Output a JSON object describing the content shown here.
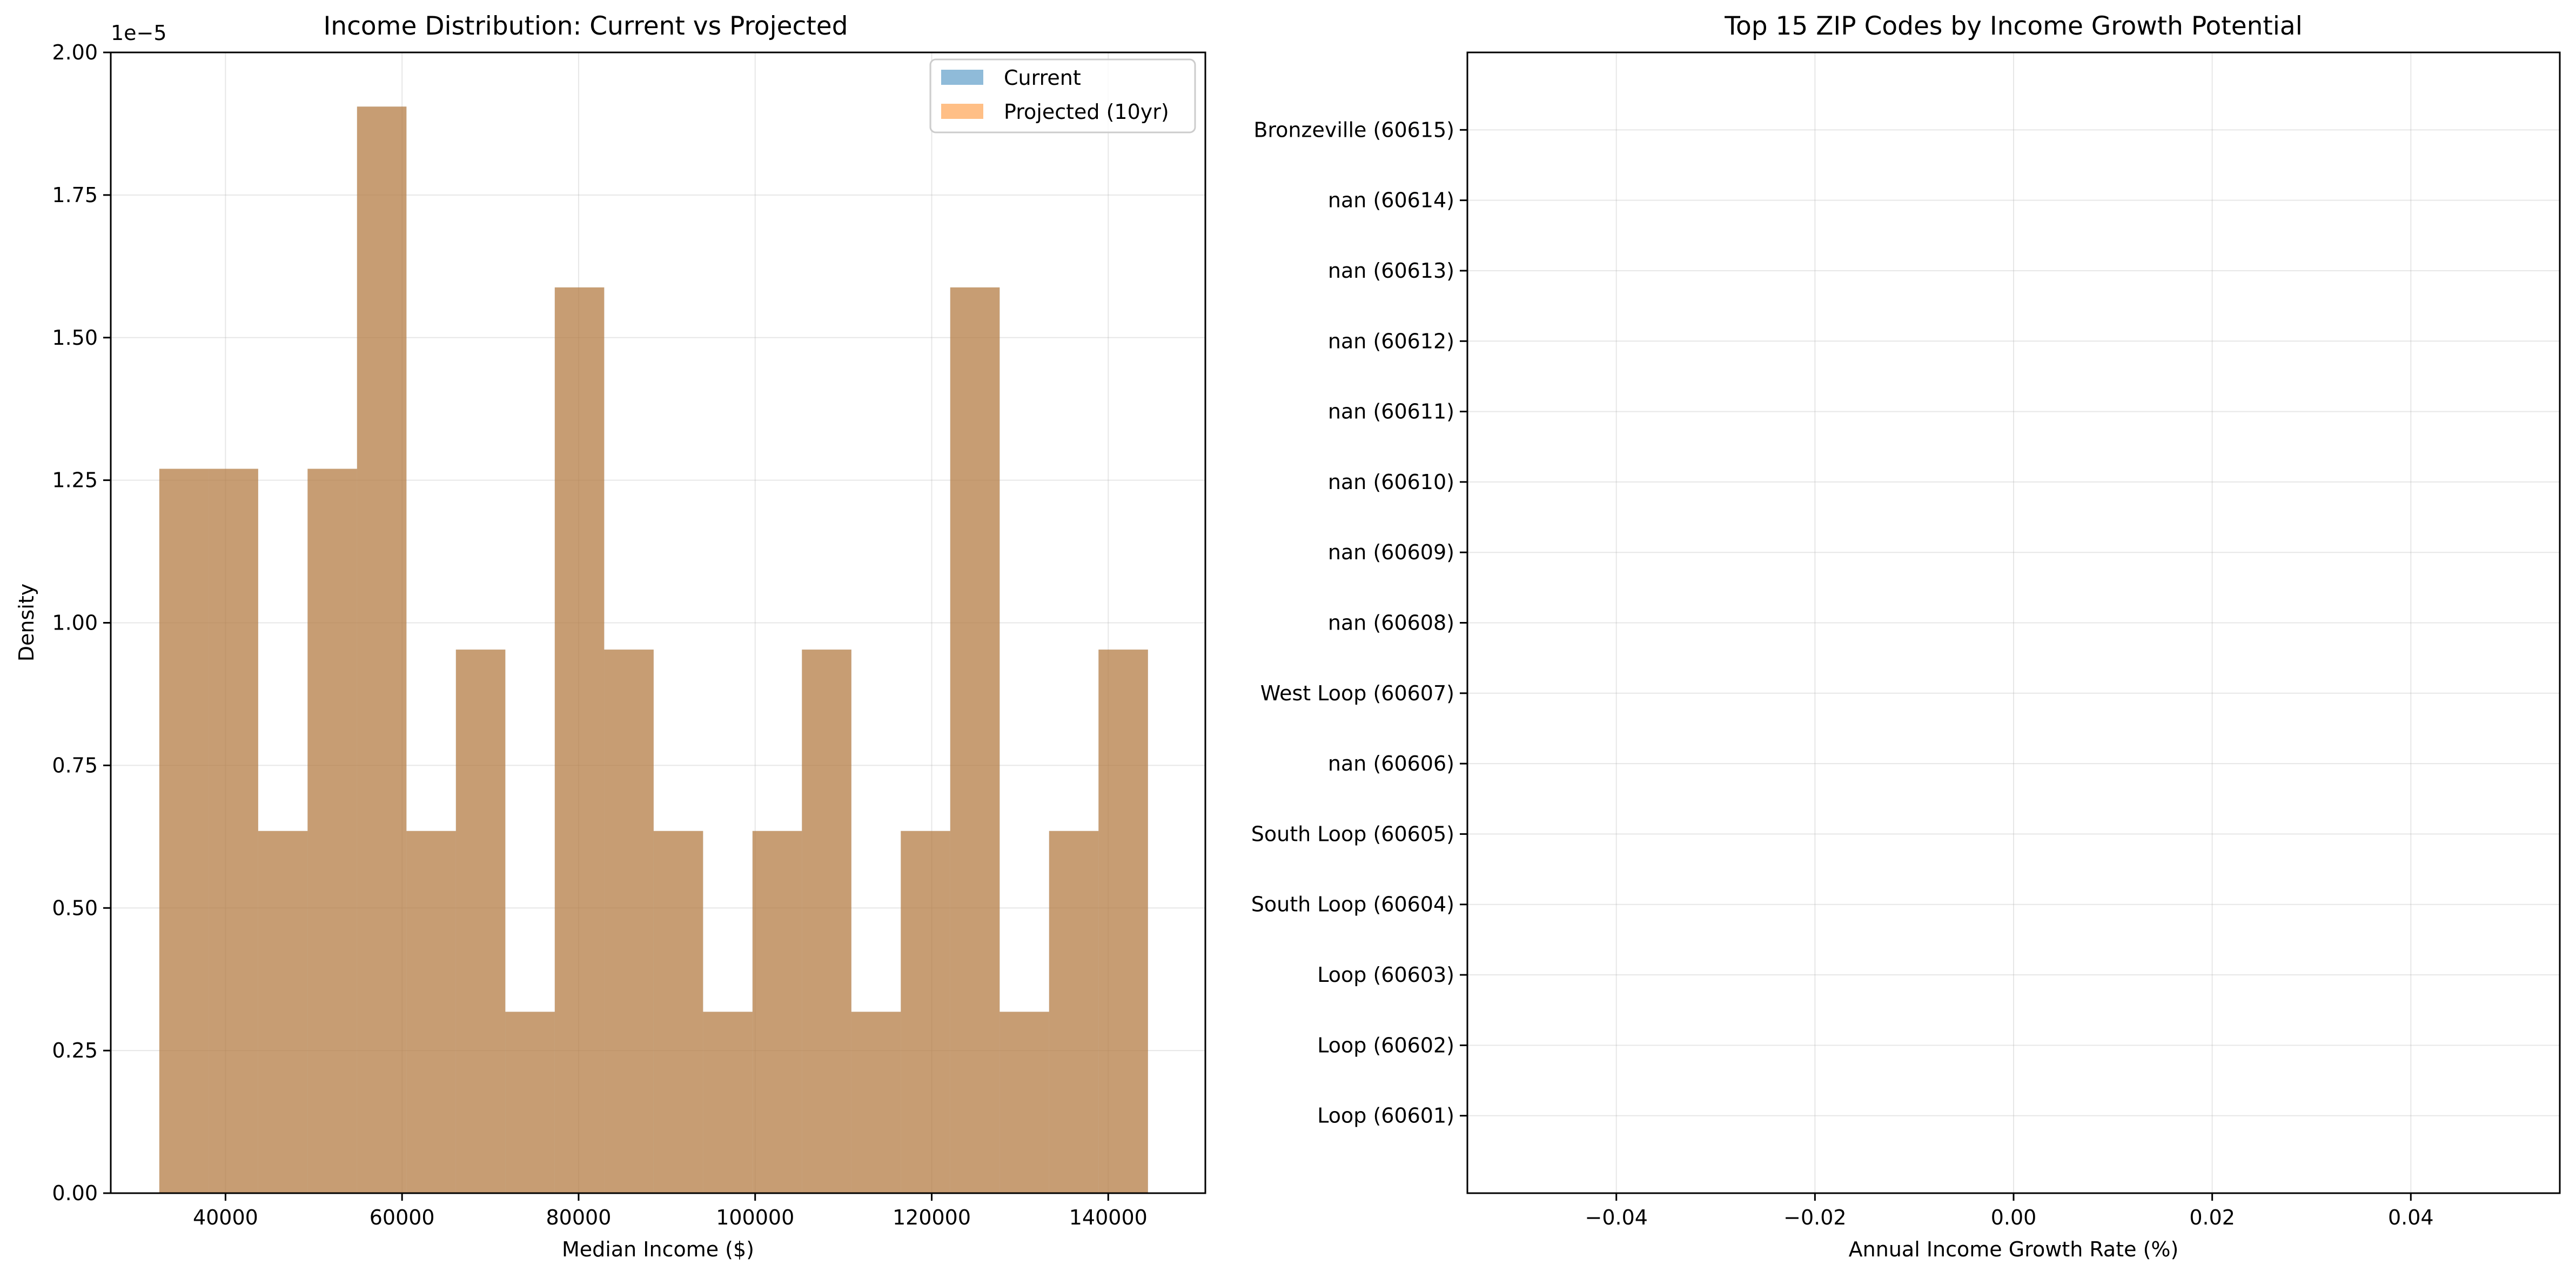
{
  "chart_data": [
    {
      "type": "bar",
      "subtype": "histogram",
      "title": "Income Distribution: Current vs Projected",
      "xlabel": "Median Income ($)",
      "ylabel": "Density",
      "offset_text": "1e−5",
      "xlim": [
        27000,
        151000
      ],
      "ylim": [
        0,
        2.0
      ],
      "x_ticks": [
        40000,
        60000,
        80000,
        100000,
        120000,
        140000
      ],
      "x_tick_labels": [
        "40000",
        "60000",
        "80000",
        "100000",
        "120000",
        "140000"
      ],
      "y_ticks": [
        0,
        0.25,
        0.5,
        0.75,
        1.0,
        1.25,
        1.5,
        1.75,
        2.0
      ],
      "y_tick_labels": [
        "0.00",
        "0.25",
        "0.50",
        "0.75",
        "1.00",
        "1.25",
        "1.50",
        "1.75",
        "2.00"
      ],
      "grid": true,
      "legend_position": "top-right",
      "bin_edges": [
        32500,
        38100,
        43700,
        49300,
        54900,
        60500,
        66100,
        71700,
        77300,
        82900,
        88500,
        94100,
        99700,
        105300,
        110900,
        116500,
        122100,
        127700,
        133300,
        138900,
        144500
      ],
      "series": [
        {
          "name": "Current",
          "color": "#1f77b4",
          "values": [
            1.27,
            1.27,
            0.635,
            1.27,
            1.905,
            0.635,
            0.953,
            0.318,
            1.588,
            0.953,
            0.635,
            0.318,
            0.635,
            0.953,
            0.318,
            0.635,
            1.588,
            0.318,
            0.635,
            0.953
          ]
        },
        {
          "name": "Projected (10yr)",
          "color": "#ff7f0e",
          "values": [
            1.27,
            1.27,
            0.635,
            1.27,
            1.905,
            0.635,
            0.953,
            0.318,
            1.588,
            0.953,
            0.635,
            0.318,
            0.635,
            0.953,
            0.318,
            0.635,
            1.588,
            0.318,
            0.635,
            0.953
          ]
        }
      ],
      "overlap_color": "#c69c73"
    },
    {
      "type": "bar",
      "orientation": "horizontal",
      "title": "Top 15 ZIP Codes by Income Growth Potential",
      "xlabel": "Annual Income Growth Rate (%)",
      "ylabel": "",
      "xlim": [
        -0.055,
        0.055
      ],
      "x_ticks": [
        -0.04,
        -0.02,
        0.0,
        0.02,
        0.04
      ],
      "x_tick_labels": [
        "−0.04",
        "−0.02",
        "0.00",
        "0.02",
        "0.04"
      ],
      "grid": true,
      "categories": [
        "Loop (60601)",
        "Loop (60602)",
        "Loop (60603)",
        "South Loop (60604)",
        "South Loop (60605)",
        "nan (60606)",
        "West Loop (60607)",
        "nan (60608)",
        "nan (60609)",
        "nan (60610)",
        "nan (60611)",
        "nan (60612)",
        "nan (60613)",
        "nan (60614)",
        "Bronzeville (60615)"
      ],
      "values": [
        0,
        0,
        0,
        0,
        0,
        0,
        0,
        0,
        0,
        0,
        0,
        0,
        0,
        0,
        0
      ]
    }
  ]
}
